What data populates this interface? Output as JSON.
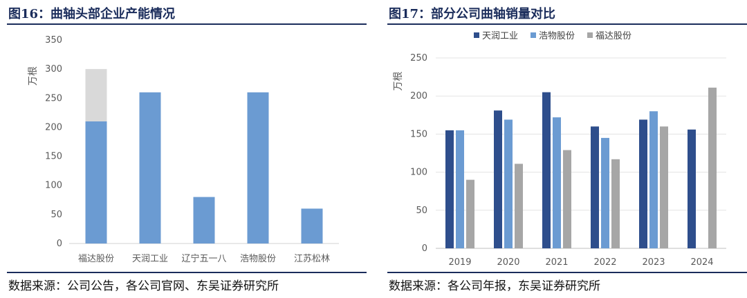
{
  "left": {
    "title": "图16：曲轴头部企业产能情况",
    "source": "数据来源：公司公告，各公司官网、东吴证券研究所"
  },
  "right": {
    "title": "图17：部分公司曲轴销量对比",
    "source": "数据来源：各公司年报，东吴证券研究所"
  },
  "chart_data": [
    {
      "type": "bar",
      "stacked": true,
      "title": "图16：曲轴头部企业产能情况",
      "ylabel": "万根",
      "ylim": [
        0,
        350
      ],
      "yticks": [
        0,
        50,
        100,
        150,
        200,
        250,
        300,
        350
      ],
      "categories": [
        "福达股份",
        "天润工业",
        "辽宁五一八",
        "浩物股份",
        "江苏松林"
      ],
      "series": [
        {
          "values": [
            210,
            260,
            80,
            260,
            60
          ],
          "color": "#6b9bd2"
        },
        {
          "values": [
            90,
            0,
            0,
            0,
            0
          ],
          "color": "#d9d9d9"
        }
      ],
      "grid": false,
      "legend": "none"
    },
    {
      "type": "bar",
      "title": "图17：部分公司曲轴销量对比",
      "ylabel": "万根",
      "ylim": [
        0,
        250
      ],
      "yticks": [
        0,
        50,
        100,
        150,
        200,
        250
      ],
      "categories": [
        "2019",
        "2020",
        "2021",
        "2022",
        "2023",
        "2024"
      ],
      "series": [
        {
          "name": "天润工业",
          "values": [
            155,
            181,
            205,
            160,
            169,
            156
          ],
          "color": "#2e4e8c"
        },
        {
          "name": "浩物股份",
          "values": [
            155,
            169,
            172,
            145,
            180,
            null
          ],
          "color": "#6b9bd2"
        },
        {
          "name": "福达股份",
          "values": [
            90,
            111,
            129,
            117,
            160,
            211
          ],
          "color": "#a6a6a6"
        }
      ],
      "grid": true,
      "legend": "top"
    }
  ]
}
